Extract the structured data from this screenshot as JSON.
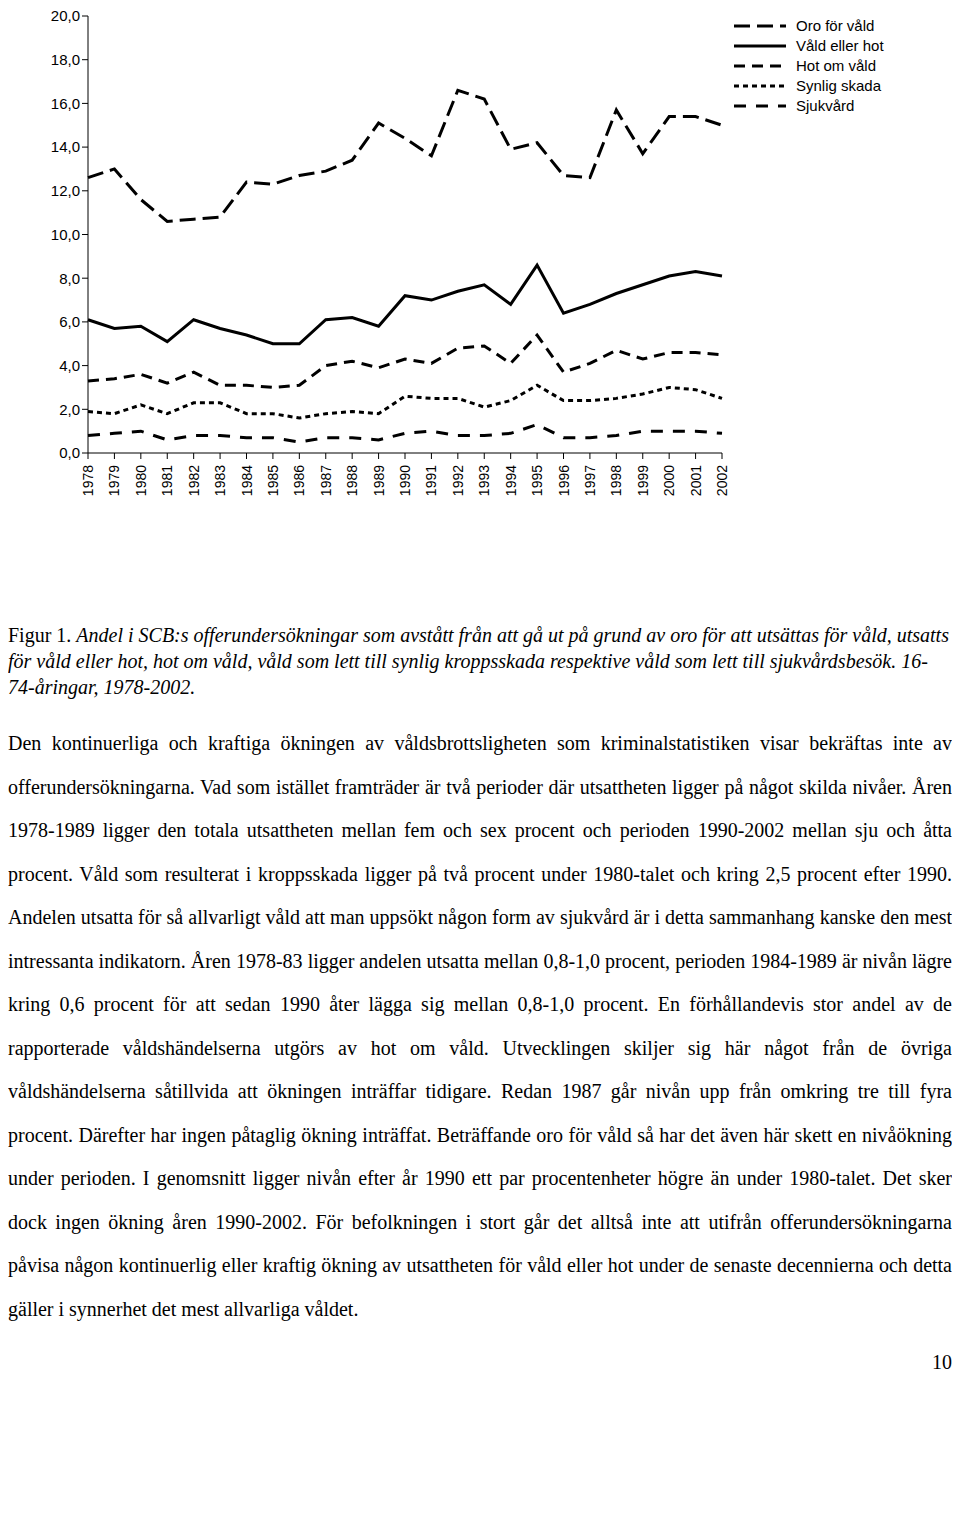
{
  "chart_data": {
    "type": "line",
    "categories": [
      "1978",
      "1979",
      "1980",
      "1981",
      "1982",
      "1983",
      "1984",
      "1985",
      "1986",
      "1987",
      "1988",
      "1989",
      "1990",
      "1991",
      "1992",
      "1993",
      "1994",
      "1995",
      "1996",
      "1997",
      "1998",
      "1999",
      "2000",
      "2001",
      "2002"
    ],
    "series": [
      {
        "name": "Oro för våld",
        "color": "#000000",
        "line_style": "long_dash",
        "values": [
          12.6,
          13.0,
          11.6,
          10.6,
          10.7,
          10.8,
          12.4,
          12.3,
          12.7,
          12.9,
          13.4,
          15.1,
          14.4,
          13.6,
          16.6,
          16.2,
          13.9,
          14.2,
          12.7,
          12.6,
          15.7,
          13.7,
          15.4,
          15.4,
          15.0
        ]
      },
      {
        "name": "Våld eller hot",
        "color": "#000000",
        "line_style": "solid",
        "values": [
          6.1,
          5.7,
          5.8,
          5.1,
          6.1,
          5.7,
          5.4,
          5.0,
          5.0,
          6.1,
          6.2,
          5.8,
          7.2,
          7.0,
          7.4,
          7.7,
          6.8,
          8.6,
          6.4,
          6.8,
          7.3,
          7.7,
          8.1,
          8.3,
          8.1
        ]
      },
      {
        "name": "Hot om våld",
        "color": "#000000",
        "line_style": "dash",
        "values": [
          3.3,
          3.4,
          3.6,
          3.2,
          3.7,
          3.1,
          3.1,
          3.0,
          3.1,
          4.0,
          4.2,
          3.9,
          4.3,
          4.1,
          4.8,
          4.9,
          4.1,
          5.4,
          3.7,
          4.1,
          4.7,
          4.3,
          4.6,
          4.6,
          4.5
        ]
      },
      {
        "name": "Synlig skada",
        "color": "#000000",
        "line_style": "short_dash",
        "values": [
          1.9,
          1.8,
          2.2,
          1.8,
          2.3,
          2.3,
          1.8,
          1.8,
          1.6,
          1.8,
          1.9,
          1.8,
          2.6,
          2.5,
          2.5,
          2.1,
          2.4,
          3.1,
          2.4,
          2.4,
          2.5,
          2.7,
          3.0,
          2.9,
          2.5
        ]
      },
      {
        "name": "Sjukvård",
        "color": "#000000",
        "line_style": "spaced_dash",
        "values": [
          0.8,
          0.9,
          1.0,
          0.6,
          0.8,
          0.8,
          0.7,
          0.7,
          0.5,
          0.7,
          0.7,
          0.6,
          0.9,
          1.0,
          0.8,
          0.8,
          0.9,
          1.3,
          0.7,
          0.7,
          0.8,
          1.0,
          1.0,
          1.0,
          0.9
        ]
      }
    ],
    "ylim": [
      0,
      20
    ],
    "yticks": [
      {
        "value": 0,
        "label": "0,0"
      },
      {
        "value": 2,
        "label": "2,0"
      },
      {
        "value": 4,
        "label": "4,0"
      },
      {
        "value": 6,
        "label": "6,0"
      },
      {
        "value": 8,
        "label": "8,0"
      },
      {
        "value": 10,
        "label": "10,0"
      },
      {
        "value": 12,
        "label": "12,0"
      },
      {
        "value": 14,
        "label": "14,0"
      },
      {
        "value": 16,
        "label": "16,0"
      },
      {
        "value": 18,
        "label": "18,0"
      },
      {
        "value": 20,
        "label": "20,0"
      }
    ],
    "grid": false,
    "legend": "right",
    "marker": "none"
  },
  "caption": {
    "label": "Figur 1.",
    "text": "Andel i SCB:s offerundersökningar som avstått från att gå ut på grund av oro för att utsättas för våld, utsatts för våld eller hot, hot om våld, våld som lett till synlig kroppsskada respektive våld som lett till sjukvårdsbesök. 16-74-åringar, 1978-2002."
  },
  "paragraph": "Den kontinuerliga och kraftiga ökningen av våldsbrottsligheten som kriminalstatistiken visar bekräftas inte av offerundersökningarna. Vad som istället framträder är två perioder där utsattheten ligger på något skilda nivåer. Åren 1978-1989 ligger den totala utsattheten mellan fem och sex procent och perioden 1990-2002 mellan sju och åtta procent. Våld som resulterat i kroppsskada ligger på två procent under 1980-talet och kring 2,5 procent efter 1990. Andelen utsatta för så allvarligt våld att man uppsökt någon form av sjukvård är i detta sammanhang kanske den mest intressanta indikatorn. Åren 1978-83 ligger andelen utsatta mellan 0,8-1,0 procent, perioden 1984-1989 är nivån lägre kring 0,6 procent för att sedan 1990 åter lägga sig mellan 0,8-1,0 procent. En förhållandevis stor andel av de rapporterade våldshändelserna utgörs av hot om våld. Utvecklingen skiljer sig här något från de övriga våldshändelserna såtillvida att ökningen inträffar tidigare. Redan 1987 går nivån upp från omkring tre till fyra procent. Därefter har ingen påtaglig ökning inträffat. Beträffande oro för våld så har det även här skett en nivåökning under perioden. I genomsnitt ligger nivån efter år 1990 ett par procentenheter högre än under 1980-talet. Det sker dock ingen ökning åren 1990-2002. För befolkningen i stort går det alltså inte att utifrån offerundersökningarna påvisa någon kontinuerlig eller kraftig ökning av utsattheten för våld eller hot under de senaste decennierna och detta gäller i synnerhet det mest allvarliga våldet.",
  "page_number": "10"
}
